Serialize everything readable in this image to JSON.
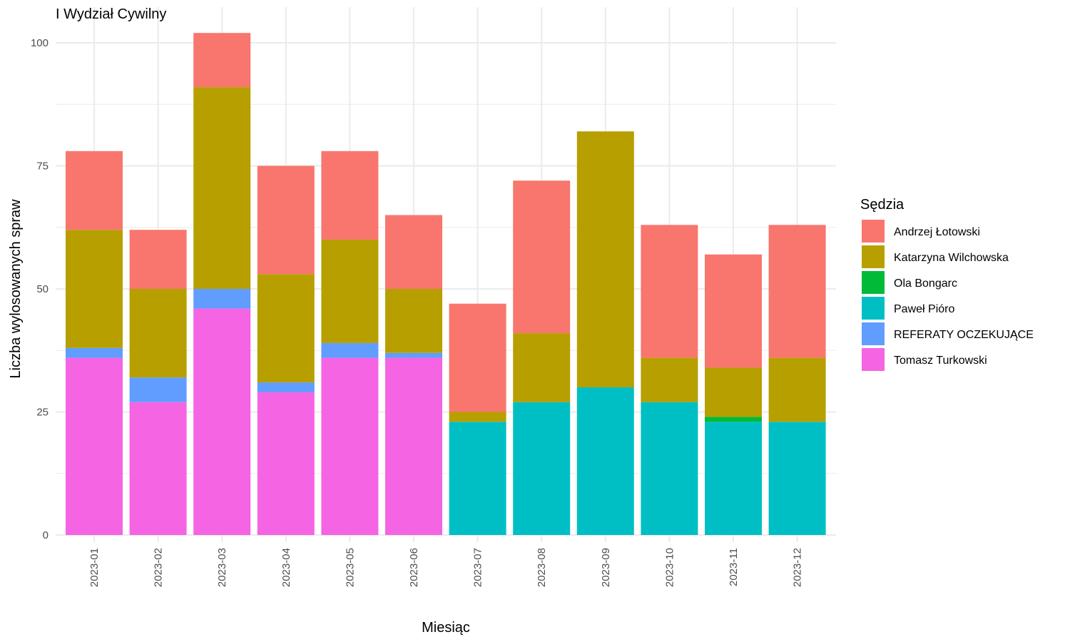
{
  "chart_data": {
    "type": "bar",
    "stacked": true,
    "title": "I Wydział Cywilny",
    "xlabel": "Miesiąc",
    "ylabel": "Liczba wylosowanych spraw",
    "ylim": [
      0,
      105
    ],
    "yticks": [
      0,
      25,
      50,
      75,
      100
    ],
    "grid": true,
    "legend_title": "Sędzia",
    "legend_position": "right",
    "categories": [
      "2023-01",
      "2023-02",
      "2023-03",
      "2023-04",
      "2023-05",
      "2023-06",
      "2023-07",
      "2023-08",
      "2023-09",
      "2023-10",
      "2023-11",
      "2023-12"
    ],
    "stack_order_bottom_to_top": [
      "Tomasz Turkowski",
      "REFERATY OCZEKUJĄCE",
      "Paweł Pióro",
      "Ola Bongarc",
      "Katarzyna Wilchowska",
      "Andrzej Łotowski"
    ],
    "series": [
      {
        "name": "Andrzej Łotowski",
        "color": "#F8766D",
        "values": [
          16,
          12,
          11,
          22,
          18,
          15,
          22,
          31,
          0,
          27,
          23,
          27
        ]
      },
      {
        "name": "Katarzyna Wilchowska",
        "color": "#B79F00",
        "values": [
          24,
          18,
          41,
          22,
          21,
          13,
          2,
          14,
          52,
          9,
          10,
          13
        ]
      },
      {
        "name": "Ola Bongarc",
        "color": "#00BA38",
        "values": [
          0,
          0,
          0,
          0,
          0,
          0,
          0,
          0,
          0,
          0,
          1,
          0
        ]
      },
      {
        "name": "Paweł Pióro",
        "color": "#00BFC4",
        "values": [
          0,
          0,
          0,
          0,
          0,
          0,
          23,
          27,
          30,
          27,
          23,
          23
        ]
      },
      {
        "name": "REFERATY OCZEKUJĄCE",
        "color": "#619CFF",
        "values": [
          2,
          5,
          4,
          2,
          3,
          1,
          0,
          0,
          0,
          0,
          0,
          0
        ]
      },
      {
        "name": "Tomasz Turkowski",
        "color": "#F564E3",
        "values": [
          36,
          27,
          46,
          29,
          36,
          36,
          0,
          0,
          0,
          0,
          0,
          0
        ]
      }
    ]
  }
}
